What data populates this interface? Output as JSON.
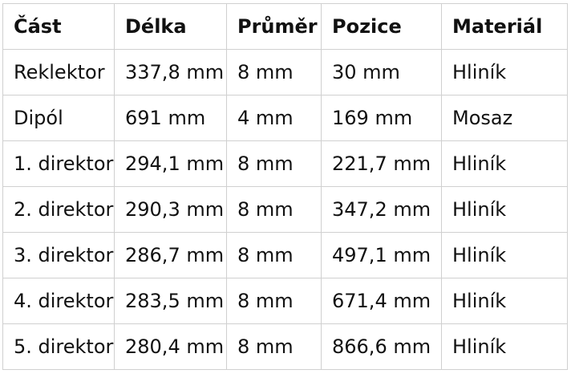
{
  "table": {
    "headers": [
      "Část",
      "Délka",
      "Průměr",
      "Pozice",
      "Materiál"
    ],
    "rows": [
      [
        "Reklektor",
        "337,8 mm",
        "8 mm",
        "30 mm",
        "Hliník"
      ],
      [
        "Dipól",
        "691 mm",
        "4 mm",
        "169 mm",
        "Mosaz"
      ],
      [
        "1. direktor",
        "294,1 mm",
        "8 mm",
        "221,7 mm",
        "Hliník"
      ],
      [
        "2. direktor",
        "290,3 mm",
        "8 mm",
        "347,2 mm",
        "Hliník"
      ],
      [
        "3. direktor",
        "286,7 mm",
        "8 mm",
        "497,1 mm",
        "Hliník"
      ],
      [
        "4. direktor",
        "283,5 mm",
        "8 mm",
        "671,4 mm",
        "Hliník"
      ],
      [
        "5. direktor",
        "280,4 mm",
        "8 mm",
        "866,6 mm",
        "Hliník"
      ]
    ]
  }
}
